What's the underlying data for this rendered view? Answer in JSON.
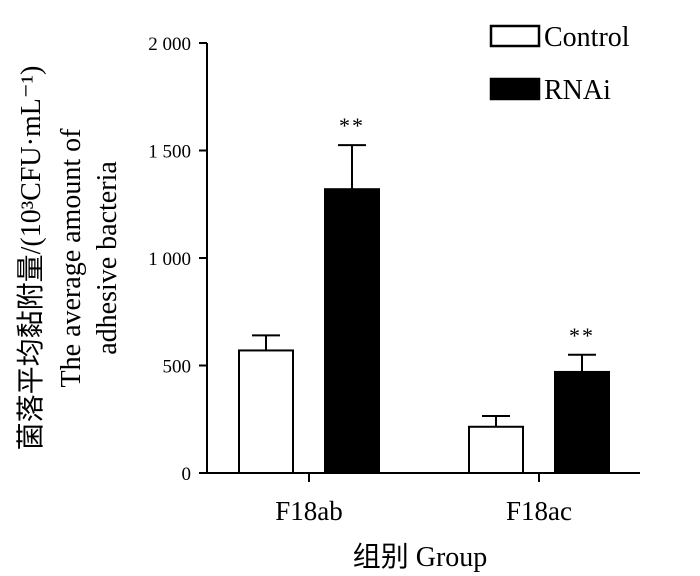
{
  "chart_data": {
    "type": "bar",
    "categories": [
      "F18ab",
      "F18ac"
    ],
    "series": [
      {
        "name": "Control",
        "values": [
          570,
          215
        ],
        "errors": [
          70,
          50
        ],
        "color": "#ffffff",
        "significance": [
          "",
          ""
        ]
      },
      {
        "name": "RNAi",
        "values": [
          1320,
          470
        ],
        "errors": [
          205,
          80
        ],
        "color": "#000000",
        "significance": [
          "**",
          "**"
        ]
      }
    ],
    "yaxis": {
      "min": 0,
      "max": 2000,
      "ticks": [
        0,
        500,
        1000,
        1500,
        2000
      ],
      "tick_labels": [
        "0",
        "500",
        "1 000",
        "1 500",
        "2 000"
      ],
      "title_lines": [
        "菌落平均黏附量/(10³CFU·mL⁻¹)",
        "The average amount of",
        "adhesive bacteria"
      ]
    },
    "xaxis": {
      "title": "组别 Group"
    },
    "legend_position": "top-right"
  }
}
